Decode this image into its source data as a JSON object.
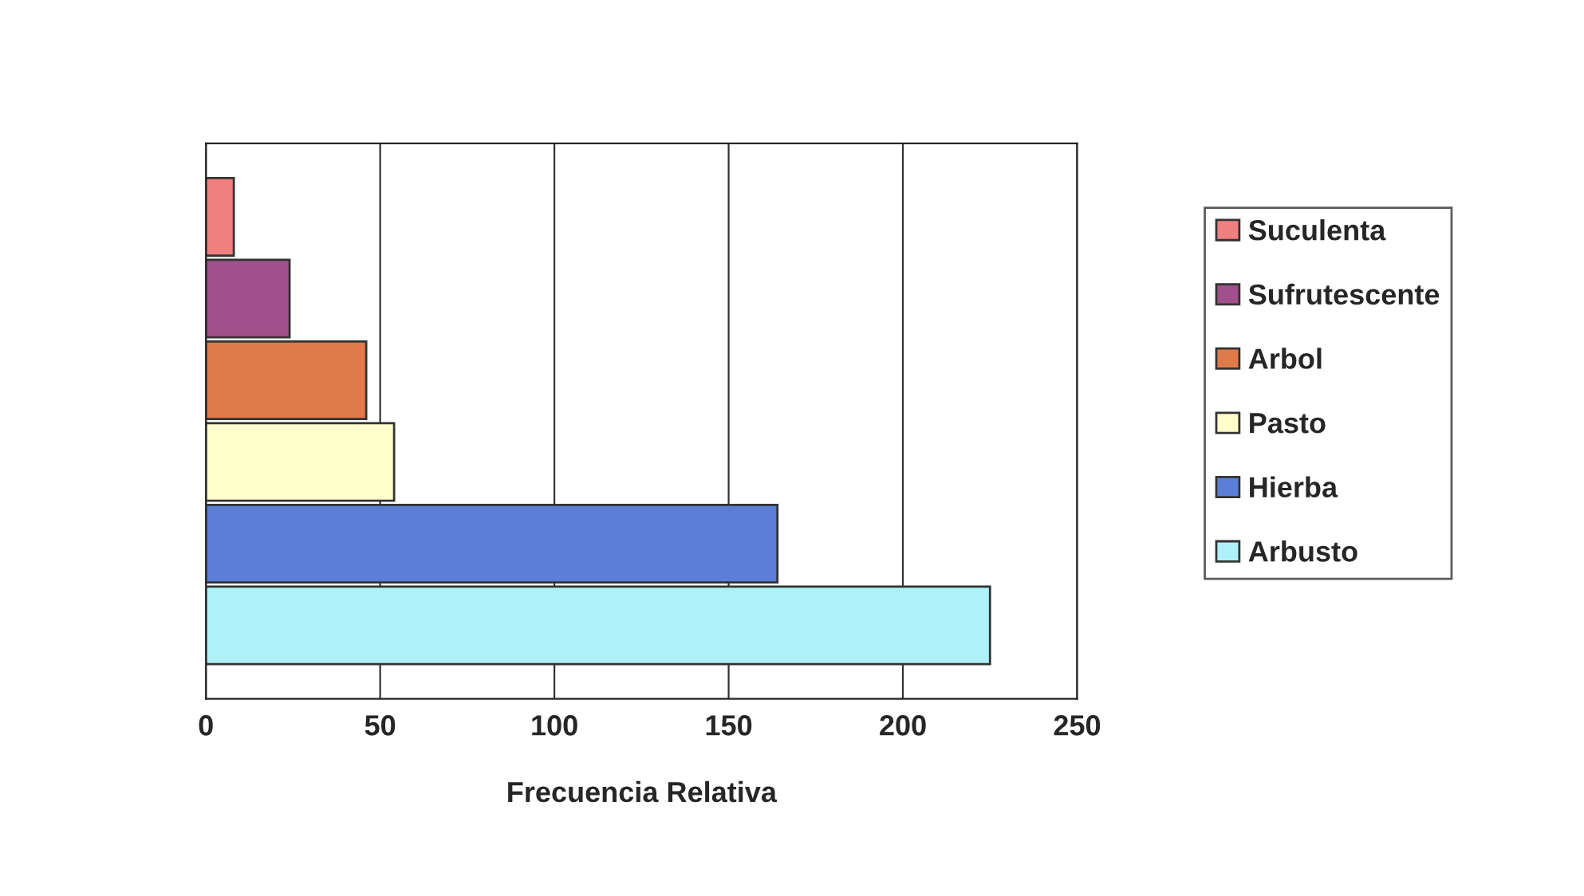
{
  "chart_data": {
    "type": "bar",
    "orientation": "horizontal",
    "xlabel": "Frecuencia Relativa",
    "categories": [
      null,
      null,
      null,
      null,
      null,
      null
    ],
    "series": [
      {
        "name": "Suculenta",
        "color": "#f08080",
        "values": [
          8,
          null,
          null,
          null,
          null,
          null
        ]
      },
      {
        "name": "Sufrutescente",
        "color": "#a0508a",
        "values": [
          null,
          24,
          null,
          null,
          null,
          null
        ]
      },
      {
        "name": "Arbol",
        "color": "#e07a4a",
        "values": [
          null,
          null,
          46,
          null,
          null,
          null
        ]
      },
      {
        "name": "Pasto",
        "color": "#ffffcc",
        "values": [
          null,
          null,
          null,
          54,
          null,
          null
        ]
      },
      {
        "name": "Hierba",
        "color": "#5b7fd6",
        "values": [
          null,
          null,
          null,
          null,
          164,
          null
        ]
      },
      {
        "name": "Arbusto",
        "color": "#b0f0f8",
        "values": [
          null,
          null,
          null,
          null,
          null,
          225
        ]
      }
    ],
    "xlim": [
      0,
      250
    ],
    "xticks": [
      0,
      50,
      100,
      150,
      200,
      250
    ],
    "grid": "x",
    "legend": "right"
  }
}
